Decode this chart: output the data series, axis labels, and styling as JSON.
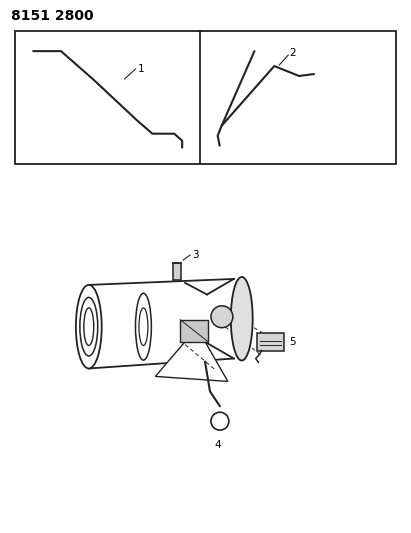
{
  "title": "8151 2800",
  "bg_color": "#ffffff",
  "line_color": "#222222",
  "label_color": "#000000",
  "title_fontsize": 10,
  "label_fontsize": 7.5,
  "fig_width": 4.11,
  "fig_height": 5.33,
  "dpi": 100
}
